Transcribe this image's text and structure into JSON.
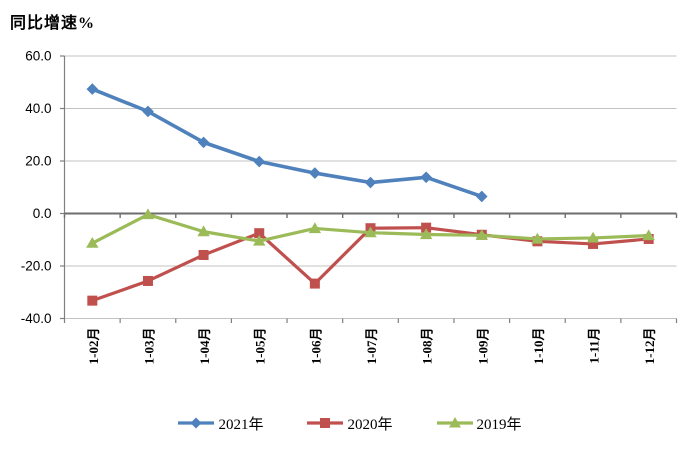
{
  "page_title": "同比增速%",
  "chart_data": {
    "type": "line",
    "title": "同比增速%",
    "ylabel": "同比增速%",
    "xlabel": "",
    "grid": true,
    "legend_position": "bottom",
    "x_tick_rotation": 90,
    "ylim": [
      -40,
      60
    ],
    "ytick_step": 20,
    "yticks": [
      {
        "value": 60,
        "label": "60.0"
      },
      {
        "value": 40,
        "label": "40.0"
      },
      {
        "value": 20,
        "label": "20.0"
      },
      {
        "value": 0,
        "label": "0.0"
      },
      {
        "value": -20,
        "label": "-20.0"
      },
      {
        "value": -40,
        "label": "-40.0"
      }
    ],
    "categories": [
      "1-02月",
      "1-03月",
      "1-04月",
      "1-05月",
      "1-06月",
      "1-07月",
      "1-08月",
      "1-09月",
      "1-10月",
      "1-11月",
      "1-12月"
    ],
    "series": [
      {
        "name": "2021年",
        "color": "#4F81BD",
        "marker": "diamond",
        "values": [
          47.4,
          38.9,
          27.1,
          19.8,
          15.4,
          11.8,
          13.8,
          6.5,
          null,
          null,
          null
        ]
      },
      {
        "name": "2020年",
        "color": "#C0504D",
        "marker": "square",
        "values": [
          -33.2,
          -25.7,
          -15.8,
          -7.5,
          -26.7,
          -5.6,
          -5.4,
          -8.1,
          -10.6,
          -11.6,
          -9.7
        ]
      },
      {
        "name": "2019年",
        "color": "#9BBB59",
        "marker": "triangle",
        "values": [
          -11.3,
          -0.4,
          -6.9,
          -10.5,
          -5.7,
          -7.3,
          -8.0,
          -8.3,
          -9.7,
          -9.3,
          -8.4
        ]
      }
    ]
  }
}
